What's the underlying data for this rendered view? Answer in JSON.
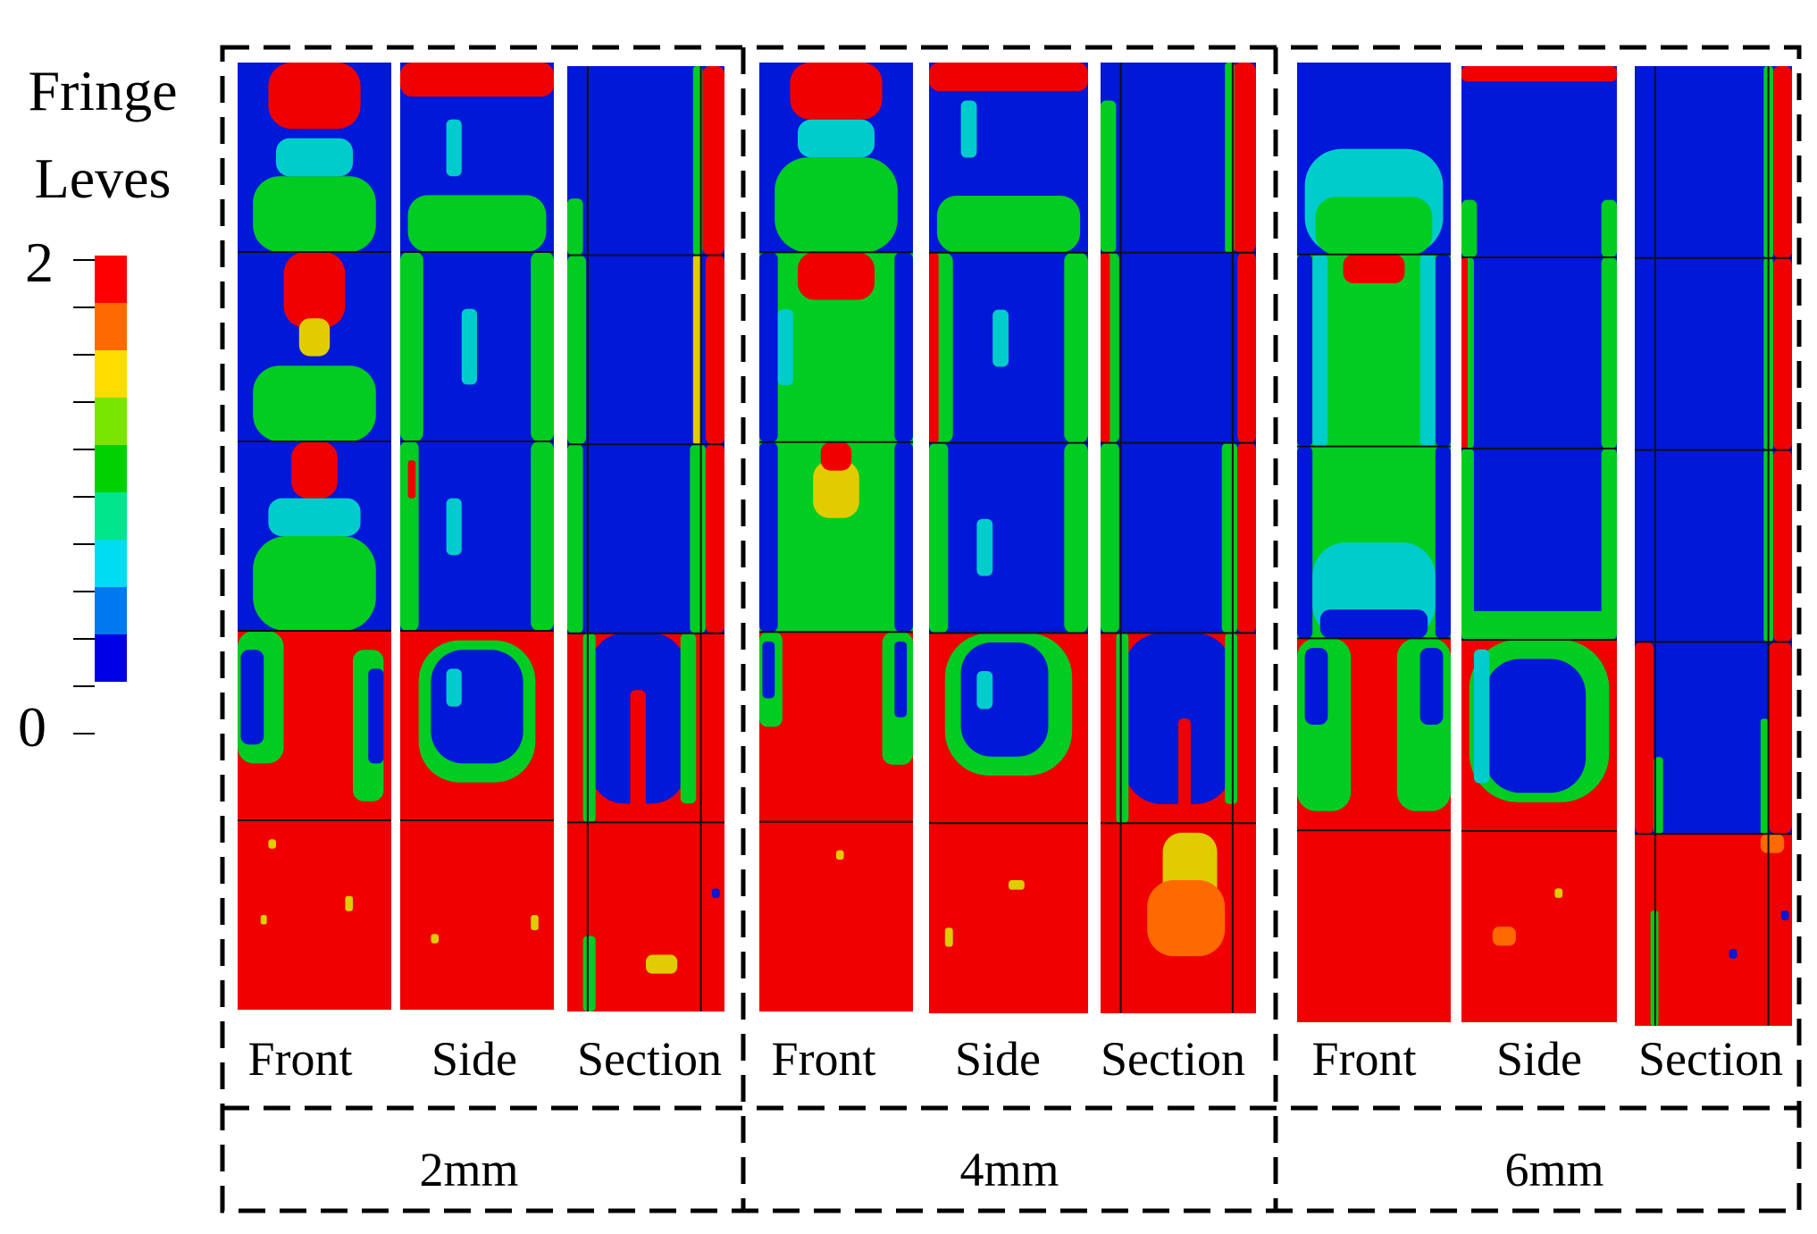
{
  "legend": {
    "title_line1": "Fringe",
    "title_line2": "Leves",
    "max_label": "2",
    "min_label": "0",
    "colors": [
      "#ff0000",
      "#ff6a00",
      "#ffdc00",
      "#78e600",
      "#00d200",
      "#00e68c",
      "#00dcf0",
      "#0078f0",
      "#0000e6"
    ]
  },
  "groups": [
    {
      "label": "2mm",
      "views": [
        "Front",
        "Side",
        "Section"
      ]
    },
    {
      "label": "4mm",
      "views": [
        "Front",
        "Side",
        "Section"
      ]
    },
    {
      "label": "6mm",
      "views": [
        "Front",
        "Side",
        "Section"
      ]
    }
  ],
  "palette": {
    "red": "#f00000",
    "orange": "#ff6a00",
    "yellow": "#e0cc00",
    "green": "#00cc22",
    "cyan": "#00cccc",
    "blue": "#0018d8"
  }
}
